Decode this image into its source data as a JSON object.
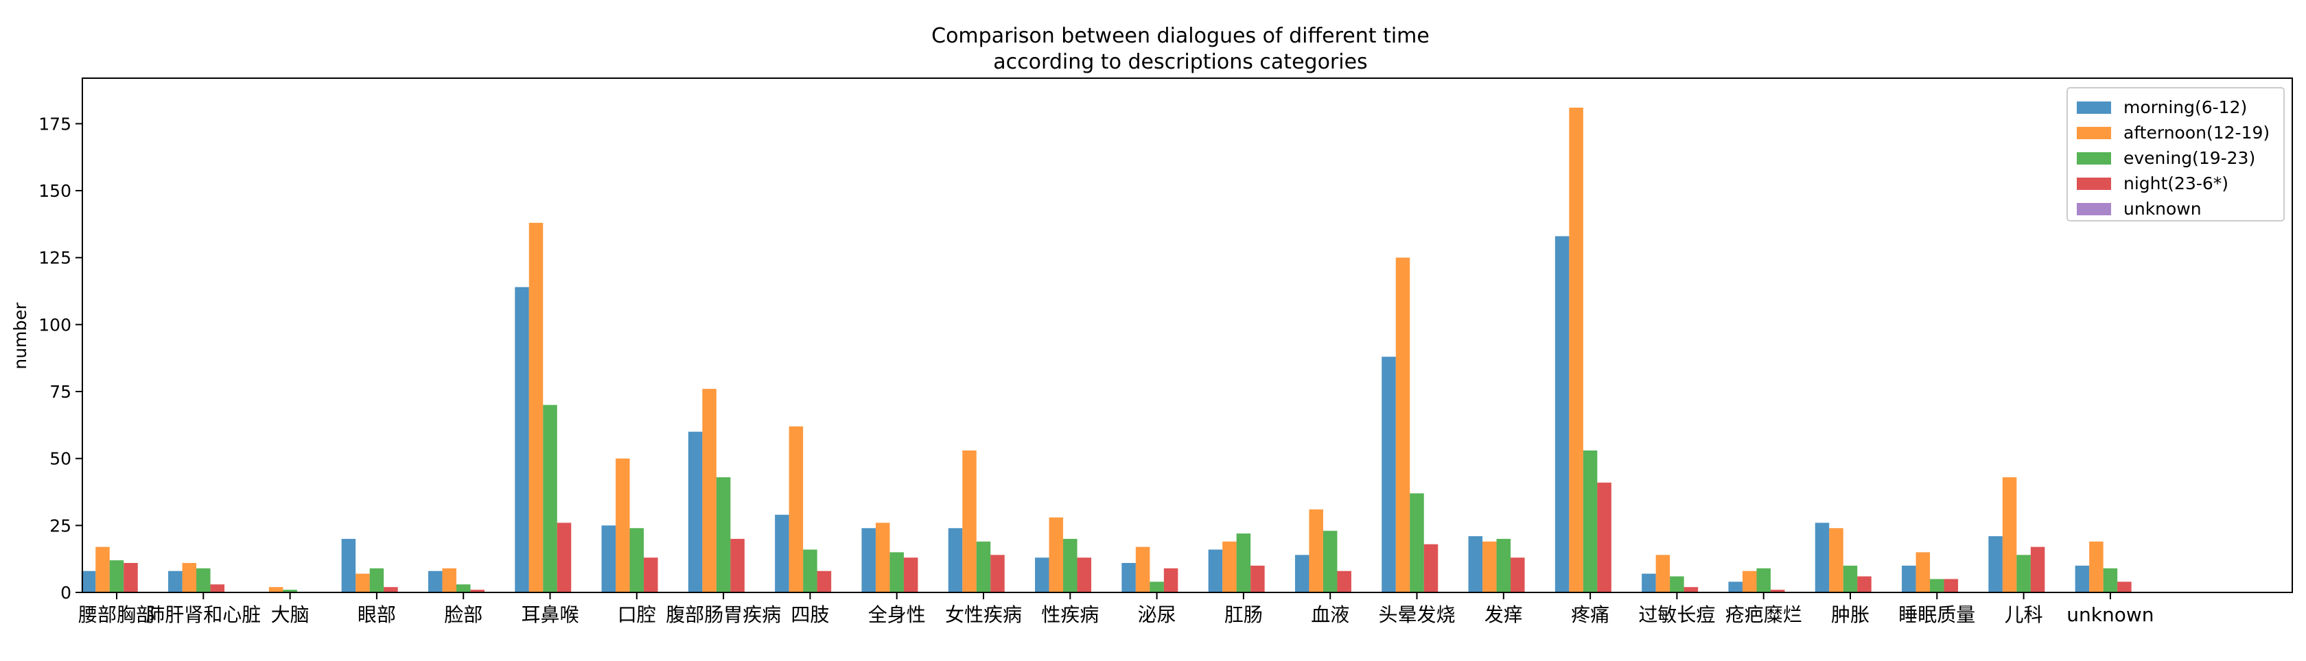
{
  "chart_data": {
    "type": "bar",
    "title_line1": "Comparison between dialogues of different time",
    "title_line2": "according to descriptions categories",
    "xlabel": "",
    "ylabel": "number",
    "ylim": [
      0,
      192
    ],
    "yticks": [
      0,
      25,
      50,
      75,
      100,
      125,
      150,
      175
    ],
    "grid": false,
    "legend_position": "top-right",
    "categories": [
      "腰部胸部",
      "肺肝肾和心脏",
      "大脑",
      "眼部",
      "脸部",
      "耳鼻喉",
      "口腔",
      "腹部肠胃疾病",
      "四肢",
      "全身性",
      "女性疾病",
      "性疾病",
      "泌尿",
      "肛肠",
      "血液",
      "头晕发烧",
      "发痒",
      "疼痛",
      "过敏长痘",
      "疮疤糜烂",
      "肿胀",
      "睡眠质量",
      "儿科",
      "unknown"
    ],
    "series": [
      {
        "name": "morning(6-12)",
        "color": "#1f77b4",
        "values": [
          8,
          8,
          0,
          20,
          8,
          114,
          25,
          60,
          29,
          24,
          24,
          13,
          11,
          16,
          14,
          88,
          21,
          133,
          7,
          4,
          26,
          10,
          21,
          10
        ]
      },
      {
        "name": "afternoon(12-19)",
        "color": "#ff7f0e",
        "values": [
          17,
          11,
          2,
          7,
          9,
          138,
          50,
          76,
          62,
          26,
          53,
          28,
          17,
          19,
          31,
          125,
          19,
          181,
          14,
          8,
          24,
          15,
          43,
          19
        ]
      },
      {
        "name": "evening(19-23)",
        "color": "#2ca02c",
        "values": [
          12,
          9,
          1,
          9,
          3,
          70,
          24,
          43,
          16,
          15,
          19,
          20,
          4,
          22,
          23,
          37,
          20,
          53,
          6,
          9,
          10,
          5,
          14,
          9
        ]
      },
      {
        "name": "night(23-6*)",
        "color": "#d62728",
        "values": [
          11,
          3,
          0,
          2,
          1,
          26,
          13,
          20,
          8,
          13,
          14,
          13,
          9,
          10,
          8,
          18,
          13,
          41,
          2,
          1,
          6,
          5,
          17,
          4
        ]
      },
      {
        "name": "unknown",
        "color": "#9467bd",
        "values": [
          0,
          0,
          0,
          0,
          0,
          0,
          0,
          0,
          0,
          0,
          0,
          0,
          0,
          0,
          0,
          0,
          0,
          0,
          0,
          0,
          0,
          0,
          0,
          0
        ]
      }
    ]
  }
}
